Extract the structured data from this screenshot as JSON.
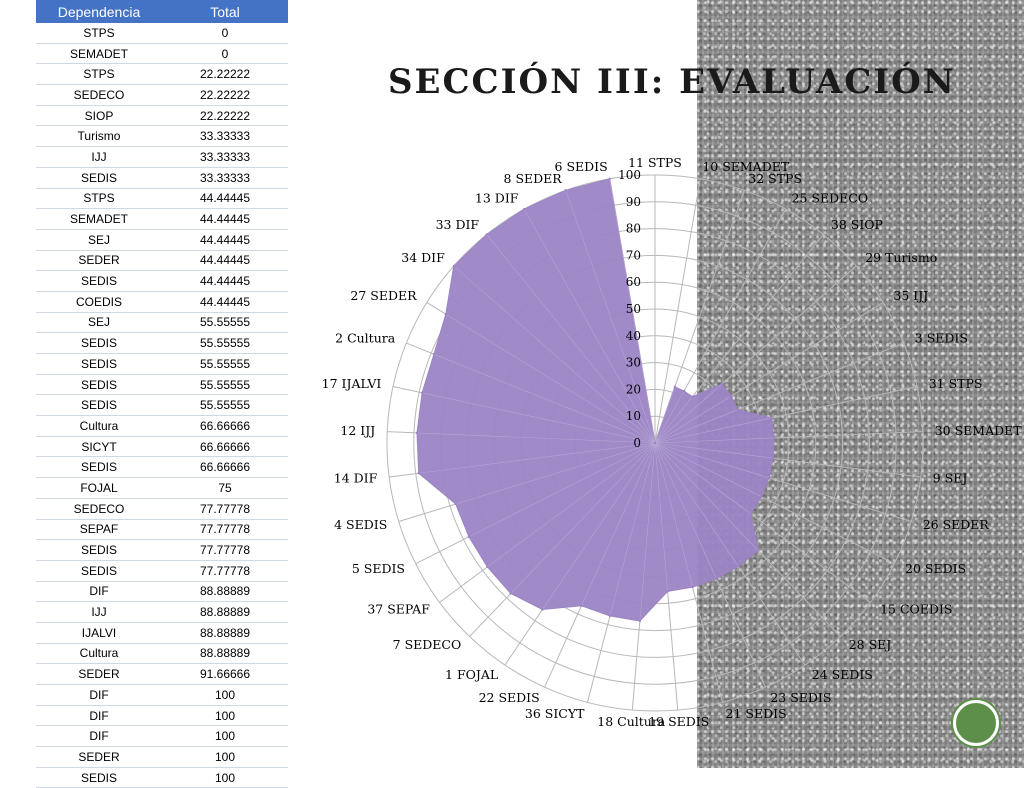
{
  "page": {
    "title": "SECCIÓN III: EVALUACIÓN"
  },
  "table": {
    "headers": [
      "Dependencia",
      "Total"
    ],
    "rows": [
      [
        "STPS",
        "0"
      ],
      [
        "SEMADET",
        "0"
      ],
      [
        "STPS",
        "22.22222"
      ],
      [
        "SEDECO",
        "22.22222"
      ],
      [
        "SIOP",
        "22.22222"
      ],
      [
        "Turismo",
        "33.33333"
      ],
      [
        "IJJ",
        "33.33333"
      ],
      [
        "SEDIS",
        "33.33333"
      ],
      [
        "STPS",
        "44.44445"
      ],
      [
        "SEMADET",
        "44.44445"
      ],
      [
        "SEJ",
        "44.44445"
      ],
      [
        "SEDER",
        "44.44445"
      ],
      [
        "SEDIS",
        "44.44445"
      ],
      [
        "COEDIS",
        "44.44445"
      ],
      [
        "SEJ",
        "55.55555"
      ],
      [
        "SEDIS",
        "55.55555"
      ],
      [
        "SEDIS",
        "55.55555"
      ],
      [
        "SEDIS",
        "55.55555"
      ],
      [
        "SEDIS",
        "55.55555"
      ],
      [
        "Cultura",
        "66.66666"
      ],
      [
        "SICYT",
        "66.66666"
      ],
      [
        "SEDIS",
        "66.66666"
      ],
      [
        "FOJAL",
        "75"
      ],
      [
        "SEDECO",
        "77.77778"
      ],
      [
        "SEPAF",
        "77.77778"
      ],
      [
        "SEDIS",
        "77.77778"
      ],
      [
        "SEDIS",
        "77.77778"
      ],
      [
        "DIF",
        "88.88889"
      ],
      [
        "IJJ",
        "88.88889"
      ],
      [
        "IJALVI",
        "88.88889"
      ],
      [
        "Cultura",
        "88.88889"
      ],
      [
        "SEDER",
        "91.66666"
      ],
      [
        "DIF",
        "100"
      ],
      [
        "DIF",
        "100"
      ],
      [
        "DIF",
        "100"
      ],
      [
        "SEDER",
        "100"
      ],
      [
        "SEDIS",
        "100"
      ]
    ]
  },
  "chart_data": {
    "type": "radar",
    "rlim": [
      0,
      100
    ],
    "r_ticks": [
      "0",
      "10",
      "20",
      "30",
      "40",
      "50",
      "60",
      "70",
      "80",
      "90",
      "100"
    ],
    "categories": [
      "11 STPS",
      "10 SEMADET",
      "32 STPS",
      "25 SEDECO",
      "38 SIOP",
      "29 Turismo",
      "35 IJJ",
      "3 SEDIS",
      "31 STPS",
      "30 SEMADET",
      "9 SEJ",
      "26 SEDER",
      "20 SEDIS",
      "15 COEDIS",
      "28 SEJ",
      "24 SEDIS",
      "23 SEDIS",
      "21 SEDIS",
      "19 SEDIS",
      "18 Cultura",
      "36 SICYT",
      "22 SEDIS",
      "1 FOJAL",
      "7 SEDECO",
      "37 SEPAF",
      "5 SEDIS",
      "4 SEDIS",
      "14 DIF",
      "12 IJJ",
      "17 IJALVI",
      "2 Cultura",
      "27 SEDER",
      "34 DIF",
      "33 DIF",
      "13 DIF",
      "8 SEDER",
      "6 SEDIS"
    ],
    "values": [
      0,
      0,
      22.22222,
      22.22222,
      22.22222,
      33.33333,
      33.33333,
      33.33333,
      44.44445,
      44.44445,
      44.44445,
      44.44445,
      44.44445,
      44.44445,
      55.55555,
      55.55555,
      55.55555,
      55.55555,
      55.55555,
      66.66666,
      66.66666,
      66.66666,
      75,
      77.77778,
      77.77778,
      77.77778,
      77.77778,
      88.88889,
      88.88889,
      88.88889,
      88.88889,
      91.66666,
      100,
      100,
      100,
      100,
      100
    ],
    "fill_color": "#9b84c4",
    "grid_color": "#b8b8b8"
  }
}
